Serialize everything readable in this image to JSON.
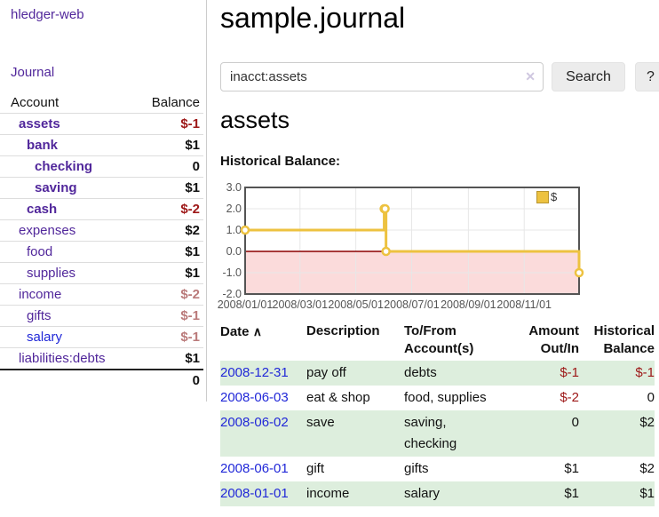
{
  "app": {
    "brand": "hledger-web"
  },
  "sidebar": {
    "journal_link": "Journal",
    "accounts_table": {
      "account_header": "Account",
      "balance_header": "Balance",
      "rows": [
        {
          "name": "assets",
          "balance": "$-1",
          "depth": 1,
          "bold": true
        },
        {
          "name": "bank",
          "balance": "$1",
          "depth": 2,
          "bold": true
        },
        {
          "name": "checking",
          "balance": "0",
          "depth": 3,
          "bold": true
        },
        {
          "name": "saving",
          "balance": "$1",
          "depth": 3,
          "bold": true
        },
        {
          "name": "cash",
          "balance": "$-2",
          "depth": 2,
          "bold": true
        },
        {
          "name": "expenses",
          "balance": "$2",
          "depth": 1,
          "bold": false
        },
        {
          "name": "food",
          "balance": "$1",
          "depth": 2,
          "bold": false
        },
        {
          "name": "supplies",
          "balance": "$1",
          "depth": 2,
          "bold": false
        },
        {
          "name": "income",
          "balance": "$-2",
          "depth": 1,
          "bold": false
        },
        {
          "name": "gifts",
          "balance": "$-1",
          "depth": 2,
          "bold": false
        },
        {
          "name": "salary",
          "balance": "$-1",
          "depth": 2,
          "bold": false,
          "link_color": "blue"
        },
        {
          "name": "liabilities:debts",
          "balance": "$1",
          "depth": 1,
          "bold": false
        }
      ],
      "total": "0"
    }
  },
  "header": {
    "title": "sample.journal"
  },
  "search": {
    "value": "inacct:assets",
    "clear_icon": "✕",
    "search_button": "Search",
    "help_button": "?"
  },
  "account_page": {
    "heading": "assets",
    "chart_title": "Historical Balance:"
  },
  "chart_data": {
    "type": "line",
    "title": "Historical Balance",
    "step": true,
    "x_range": [
      "2008-01-01",
      "2008-12-31"
    ],
    "ylim": [
      -2,
      3
    ],
    "y_ticks": [
      "3.0",
      "2.0",
      "1.0",
      "0.0",
      "-1.0",
      "-2.0"
    ],
    "x_ticks": [
      "2008/01/01",
      "2008/03/01",
      "2008/05/01",
      "2008/07/01",
      "2008/09/01",
      "2008/11/01"
    ],
    "series": [
      {
        "name": "$",
        "color": "#edc240",
        "points": [
          [
            "2008-01-01",
            1
          ],
          [
            "2008-06-01",
            2
          ],
          [
            "2008-06-02",
            2
          ],
          [
            "2008-06-03",
            0
          ],
          [
            "2008-12-31",
            -1
          ]
        ]
      }
    ],
    "legend": {
      "label": "$",
      "position": "top-right"
    },
    "grid": true,
    "grid_color": "#e7e7e7",
    "border_color": "#545454",
    "zero_line_color": "#8b0000",
    "negative_region_color": "#fbdbdb"
  },
  "register": {
    "headers": {
      "date": "Date",
      "sort_icon": "∧",
      "description": "Description",
      "accounts": "To/From Account(s)",
      "amount": "Amount Out/In",
      "balance": "Historical Balance"
    },
    "rows": [
      {
        "date": "2008-12-31",
        "description": "pay off",
        "accounts": [
          "debts"
        ],
        "amount": "$-1",
        "balance": "$-1"
      },
      {
        "date": "2008-06-03",
        "description": "eat & shop",
        "accounts": [
          "food",
          "supplies"
        ],
        "amount": "$-2",
        "balance": "0"
      },
      {
        "date": "2008-06-02",
        "description": "save",
        "accounts": [
          "saving",
          "checking"
        ],
        "amount": "0",
        "balance": "$2"
      },
      {
        "date": "2008-06-01",
        "description": "gift",
        "accounts": [
          "gifts"
        ],
        "amount": "$1",
        "balance": "$2"
      },
      {
        "date": "2008-01-01",
        "description": "income",
        "accounts": [
          "salary"
        ],
        "amount": "$1",
        "balance": "$1"
      }
    ]
  },
  "colors": {
    "link_purple": "#51279b",
    "link_blue": "#2128d8",
    "negative_strong": "#9d1717",
    "negative_soft": "#ba7a7a",
    "row_stripe_green": "#ddeedd",
    "series_gold": "#edc240",
    "negative_region_pink": "#fbdbdb",
    "zero_line_red": "#8b0000"
  }
}
